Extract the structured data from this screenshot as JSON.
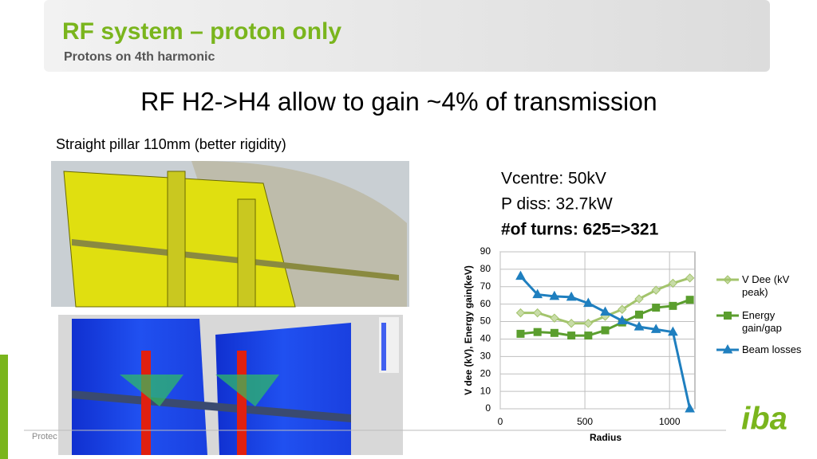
{
  "header": {
    "title": "RF system – proton only",
    "subtitle": "Protons on 4th harmonic"
  },
  "headline": "RF H2->H4 allow to gain ~4% of transmission",
  "caption": "Straight pillar 110mm (better rigidity)",
  "specs": [
    "Vcentre: 50kV",
    "P diss: 32.7kW",
    "#of turns: 625=>321"
  ],
  "footer": "Protec",
  "logo": "iba",
  "chart_data": {
    "type": "line",
    "x_label": "Radius",
    "y_label": "V dee (kV), Energy gain(keV)",
    "x": [
      120,
      220,
      320,
      420,
      520,
      620,
      720,
      820,
      920,
      1020,
      1120
    ],
    "series": [
      {
        "name": "V Dee (kV peak)",
        "color": "#a3c46c",
        "marker": "diamond",
        "values": [
          55,
          55,
          52,
          49,
          49,
          53,
          57,
          63,
          68,
          72,
          75
        ]
      },
      {
        "name": "Energy gain/gap",
        "color": "#5b9e2e",
        "marker": "square",
        "values": [
          43,
          44,
          43.5,
          42,
          42,
          45,
          49.5,
          54,
          58,
          59,
          62.5
        ]
      },
      {
        "name": "Beam losses",
        "color": "#1f7fbf",
        "marker": "triangle",
        "values": [
          76,
          65.5,
          64.5,
          64,
          60.5,
          55.5,
          50.5,
          47,
          45.5,
          44,
          0
        ]
      }
    ],
    "xlim": [
      0,
      1150
    ],
    "xticks": [
      0,
      500,
      1000
    ],
    "ylim": [
      0,
      90
    ],
    "yticks": [
      0,
      10,
      20,
      30,
      40,
      50,
      60,
      70,
      80,
      90
    ],
    "grid": true,
    "legend": "right"
  }
}
